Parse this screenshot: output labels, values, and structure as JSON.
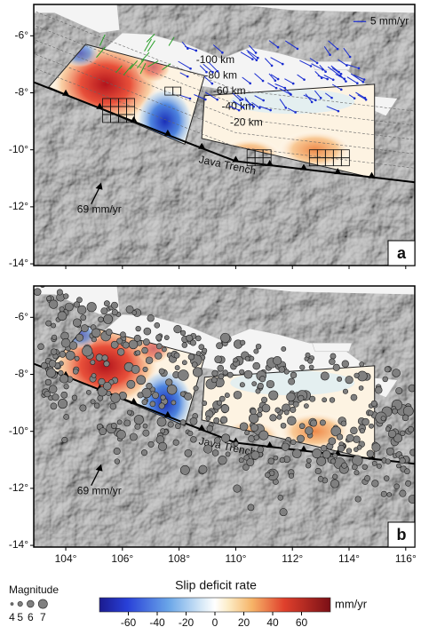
{
  "panels": [
    {
      "label": "a",
      "scale_vector": "5 mm/yr",
      "depth_labels": [
        "-100 km",
        "-80 km",
        "-60 km",
        "-40 km",
        "-20 km"
      ],
      "trench_label": "Java Trench",
      "convergence_label": "69 mm/yr"
    },
    {
      "label": "b",
      "trench_label": "Java Trench",
      "convergence_label": "69 mm/yr"
    }
  ],
  "latitude_axis": {
    "lim": [
      -4.9,
      -14.06
    ],
    "ticks": [
      {
        "value": -6,
        "label": "-6°"
      },
      {
        "value": -8,
        "label": "-8°"
      },
      {
        "value": -10,
        "label": "-10°"
      },
      {
        "value": -12,
        "label": "-12°"
      },
      {
        "value": -14,
        "label": "-14°"
      }
    ]
  },
  "longitude_axis": {
    "lim": [
      102.87,
      116.32
    ],
    "ticks": [
      {
        "value": 104,
        "label": "104°"
      },
      {
        "value": 106,
        "label": "106°"
      },
      {
        "value": 108,
        "label": "108°"
      },
      {
        "value": 110,
        "label": "110°"
      },
      {
        "value": 112,
        "label": "112°"
      },
      {
        "value": 114,
        "label": "114°"
      },
      {
        "value": 116,
        "label": "116°"
      }
    ]
  },
  "magnitude_legend": {
    "title": "Magnitude",
    "magnitudes": [
      4,
      5,
      6,
      7
    ]
  },
  "colorbar": {
    "title": "Slip deficit rate",
    "unit": "mm/yr",
    "lim": [
      -80,
      80
    ],
    "ticks": [
      -60,
      -40,
      -20,
      0,
      20,
      40,
      60
    ]
  }
}
